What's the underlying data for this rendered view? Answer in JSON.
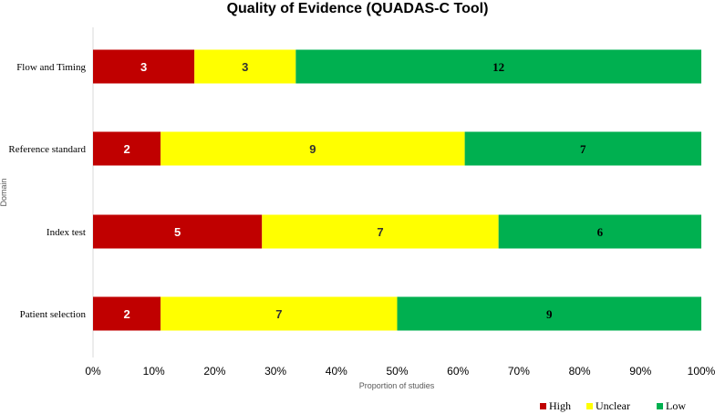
{
  "chart_data": {
    "type": "bar",
    "orientation": "horizontal",
    "stacked": true,
    "title": "Quality of Evidence (QUADAS-C Tool)",
    "xlabel": "Proportion of studies",
    "ylabel": "Domain",
    "xlim": [
      0,
      100
    ],
    "x_ticks": [
      "0%",
      "10%",
      "20%",
      "30%",
      "40%",
      "50%",
      "60%",
      "70%",
      "80%",
      "90%",
      "100%"
    ],
    "categories": [
      "Flow and Timing",
      "Reference standard",
      "Index test",
      "Patient selection"
    ],
    "series": [
      {
        "name": "High",
        "color": "#c00000",
        "label_color": "#ffffff",
        "values": [
          3,
          2,
          5,
          2
        ]
      },
      {
        "name": "Unclear",
        "color": "#ffff00",
        "label_color": "#333333",
        "values": [
          3,
          9,
          7,
          7
        ]
      },
      {
        "name": "Low",
        "color": "#00b050",
        "label_color": "#000000",
        "values": [
          12,
          7,
          6,
          9
        ]
      }
    ],
    "legend_position": "bottom-right",
    "grid": false
  }
}
